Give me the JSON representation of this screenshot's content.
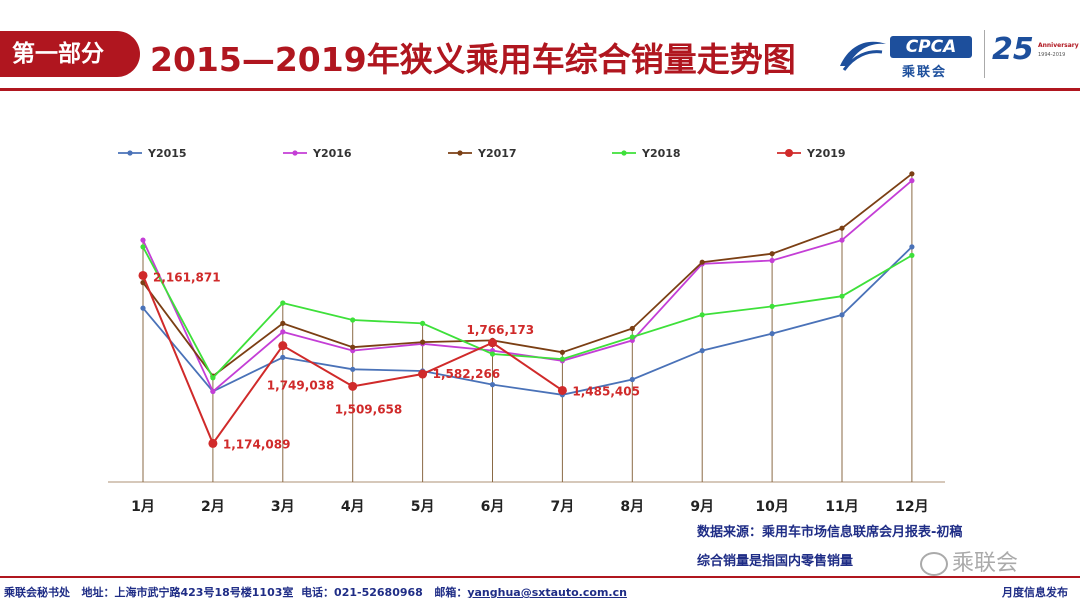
{
  "header": {
    "section_label": "第一部分",
    "title": "2015—2019年狭义乘用车综合销量走势图",
    "logo_text": "CPCA",
    "logo_cn": "乘联会",
    "anniversary_number": "25",
    "anniversary_text": "Anniversary",
    "anniversary_years": "1994-2019"
  },
  "chart_data": {
    "type": "line",
    "categories": [
      "1月",
      "2月",
      "3月",
      "4月",
      "5月",
      "6月",
      "7月",
      "8月",
      "9月",
      "10月",
      "11月",
      "12月"
    ],
    "series": [
      {
        "name": "Y2015",
        "color": "#4a72b8",
        "values": [
          1970000,
          1480000,
          1680000,
          1610000,
          1600000,
          1520000,
          1460000,
          1550000,
          1720000,
          1820000,
          1930000,
          2330000
        ]
      },
      {
        "name": "Y2016",
        "color": "#c43ed6",
        "values": [
          2370000,
          1480000,
          1830000,
          1720000,
          1760000,
          1720000,
          1660000,
          1780000,
          2230000,
          2250000,
          2370000,
          2720000
        ]
      },
      {
        "name": "Y2017",
        "color": "#7b3f14",
        "values": [
          2120000,
          1570000,
          1880000,
          1740000,
          1770000,
          1780000,
          1710000,
          1850000,
          2240000,
          2290000,
          2440000,
          2760000
        ]
      },
      {
        "name": "Y2018",
        "color": "#3ee03a",
        "values": [
          2330000,
          1560000,
          2000000,
          1900000,
          1880000,
          1700000,
          1670000,
          1800000,
          1930000,
          1980000,
          2040000,
          2280000
        ]
      },
      {
        "name": "Y2019",
        "color": "#d02a2a",
        "values": [
          2161871,
          1174089,
          1749038,
          1509658,
          1582266,
          1766173,
          1485405,
          null,
          null,
          null,
          null,
          null
        ]
      }
    ],
    "data_labels": [
      "2,161,871",
      "1,174,089",
      "1,749,038",
      "1,509,658",
      "1,582,266",
      "1,766,173",
      "1,485,405"
    ],
    "ylim": [
      900000,
      2900000
    ],
    "grid": false,
    "legend_position": "top"
  },
  "source": {
    "line1": "数据来源：乘用车市场信息联席会月报表-初稿",
    "line2": "综合销量是指国内零售销量"
  },
  "watermark": "乘联会",
  "footer": {
    "org": "乘联会秘书处",
    "address": "地址：上海市武宁路423号18号楼1103室",
    "phone": "电话：021-52680968",
    "email_label": "邮箱：",
    "email": "yanghua@sxtauto.com.cn",
    "right": "月度信息发布"
  }
}
